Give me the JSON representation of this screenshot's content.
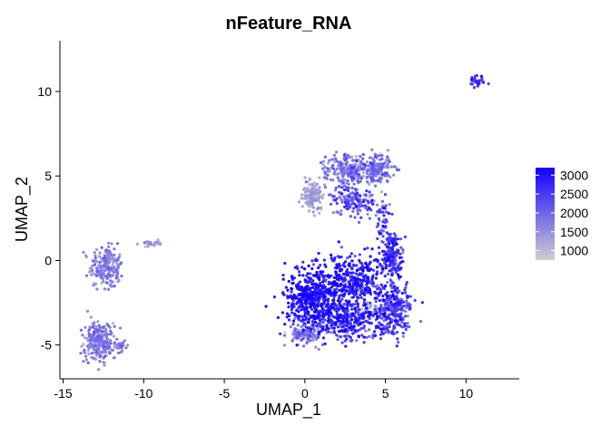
{
  "chart_data": {
    "type": "scatter",
    "title": "nFeature_RNA",
    "xlabel": "UMAP_1",
    "ylabel": "UMAP_2",
    "xlim": [
      -15.2,
      13.3
    ],
    "ylim": [
      -7.0,
      13.0
    ],
    "xticks": [
      -15,
      -10,
      -5,
      0,
      5,
      10
    ],
    "yticks": [
      -5,
      0,
      5,
      10
    ],
    "grid": false,
    "legend": {
      "position": "right",
      "type": "colorbar",
      "ticks": [
        3000,
        2500,
        2000,
        1500,
        1000
      ],
      "range": [
        750,
        3200
      ],
      "color_low": "#cfcfcf",
      "color_high": "#1200ff"
    },
    "clusters": [
      {
        "name": "top-right-small",
        "cx": 10.7,
        "cy": 10.6,
        "sx": 0.25,
        "sy": 0.2,
        "n": 35,
        "mean": 2300,
        "sd": 500
      },
      {
        "name": "left-upper",
        "cx": -12.3,
        "cy": -0.4,
        "sx": 0.5,
        "sy": 0.6,
        "n": 230,
        "mean": 1550,
        "sd": 250
      },
      {
        "name": "left-upper-bridge",
        "cx": -9.6,
        "cy": 1.0,
        "sx": 0.35,
        "sy": 0.08,
        "n": 25,
        "mean": 1350,
        "sd": 200
      },
      {
        "name": "left-lower",
        "cx": -12.8,
        "cy": -4.8,
        "sx": 0.45,
        "sy": 0.6,
        "n": 260,
        "mean": 1600,
        "sd": 250
      },
      {
        "name": "left-lower-tail",
        "cx": -11.4,
        "cy": -5.1,
        "sx": 0.25,
        "sy": 0.2,
        "n": 30,
        "mean": 1700,
        "sd": 250
      },
      {
        "name": "upper-mid-left",
        "cx": 0.5,
        "cy": 3.9,
        "sx": 0.35,
        "sy": 0.45,
        "n": 140,
        "mean": 1200,
        "sd": 200
      },
      {
        "name": "upper-mid-center",
        "cx": 2.7,
        "cy": 5.4,
        "sx": 0.7,
        "sy": 0.45,
        "n": 220,
        "mean": 1700,
        "sd": 350
      },
      {
        "name": "upper-mid-right",
        "cx": 4.4,
        "cy": 5.4,
        "sx": 0.5,
        "sy": 0.45,
        "n": 160,
        "mean": 1750,
        "sd": 350
      },
      {
        "name": "upper-mid-lower",
        "cx": 3.0,
        "cy": 3.6,
        "sx": 0.7,
        "sy": 0.45,
        "n": 140,
        "mean": 2100,
        "sd": 400
      },
      {
        "name": "upper-mid-stalk",
        "cx": 4.8,
        "cy": 2.6,
        "sx": 0.25,
        "sy": 0.5,
        "n": 50,
        "mean": 2200,
        "sd": 400
      },
      {
        "name": "right-column",
        "cx": 5.4,
        "cy": 0.4,
        "sx": 0.35,
        "sy": 0.7,
        "n": 180,
        "mean": 2500,
        "sd": 350
      },
      {
        "name": "bottom-left-dense",
        "cx": 0.5,
        "cy": -2.3,
        "sx": 0.85,
        "sy": 0.9,
        "n": 480,
        "mean": 2850,
        "sd": 300
      },
      {
        "name": "bottom-center",
        "cx": 3.0,
        "cy": -1.3,
        "sx": 1.0,
        "sy": 0.8,
        "n": 380,
        "mean": 2750,
        "sd": 300
      },
      {
        "name": "bottom-lower",
        "cx": 2.8,
        "cy": -3.6,
        "sx": 1.2,
        "sy": 0.5,
        "n": 300,
        "mean": 2500,
        "sd": 400
      },
      {
        "name": "bottom-right-lobe",
        "cx": 5.5,
        "cy": -2.8,
        "sx": 0.55,
        "sy": 0.9,
        "n": 260,
        "mean": 2300,
        "sd": 400
      },
      {
        "name": "bottom-left-tail",
        "cx": 0.0,
        "cy": -4.3,
        "sx": 0.45,
        "sy": 0.35,
        "n": 120,
        "mean": 1700,
        "sd": 350
      },
      {
        "name": "bottom-gray-patch",
        "cx": 3.8,
        "cy": -3.0,
        "sx": 0.3,
        "sy": 0.25,
        "n": 40,
        "mean": 1100,
        "sd": 150
      }
    ]
  }
}
